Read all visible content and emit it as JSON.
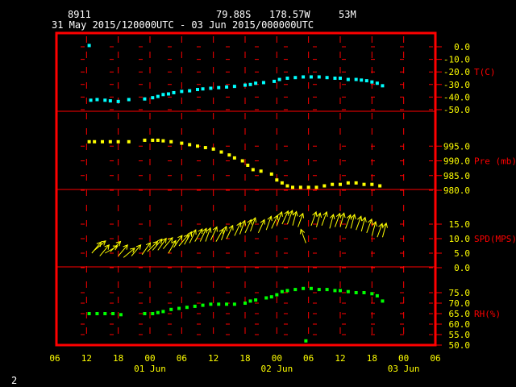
{
  "header": {
    "station": "8911",
    "lat": "79.88S",
    "lon": "178.57W",
    "elev": "53M",
    "range": "31 May 2015/120000UTC - 03 Jun 2015/000000UTC"
  },
  "page_number": "2",
  "colors": {
    "frame": "#ff0000",
    "grid": "#ff0000",
    "temp": "#00ffff",
    "pres": "#ffff00",
    "wind": "#ffff00",
    "rh": "#00ff00",
    "axis_text": "#ffff00",
    "label_text": "#ff0000"
  },
  "chart_data": {
    "type": "scatter",
    "x_unit": "hours since 31 May 2015 06UTC",
    "x_ticks": [
      {
        "h": 0,
        "label": "06"
      },
      {
        "h": 6,
        "label": "12"
      },
      {
        "h": 12,
        "label": "18"
      },
      {
        "h": 18,
        "label": "00"
      },
      {
        "h": 24,
        "label": "06"
      },
      {
        "h": 30,
        "label": "12"
      },
      {
        "h": 36,
        "label": "18"
      },
      {
        "h": 42,
        "label": "00"
      },
      {
        "h": 48,
        "label": "06"
      },
      {
        "h": 54,
        "label": "12"
      },
      {
        "h": 60,
        "label": "18"
      },
      {
        "h": 66,
        "label": "00"
      },
      {
        "h": 72,
        "label": "06"
      }
    ],
    "day_labels": [
      {
        "h": 18,
        "label": "01 Jun"
      },
      {
        "h": 42,
        "label": "02 Jun"
      },
      {
        "h": 66,
        "label": "03 Jun"
      }
    ],
    "panels": [
      {
        "id": "temp",
        "label": "T(C)",
        "ylim": [
          -50,
          0
        ],
        "ticks": [
          "0.0",
          "-10.0",
          "-20.0",
          "-30.0",
          "-40.0",
          "-50.0"
        ],
        "points": [
          [
            6.5,
            1.0
          ],
          [
            6.8,
            -42.5
          ],
          [
            8.0,
            -42.0
          ],
          [
            9.5,
            -42.5
          ],
          [
            10.5,
            -43.0
          ],
          [
            12.0,
            -43.5
          ],
          [
            14.0,
            -42.0
          ],
          [
            17.0,
            -41.5
          ],
          [
            18.5,
            -40.5
          ],
          [
            19.5,
            -39.5
          ],
          [
            20.5,
            -38.0
          ],
          [
            21.5,
            -37.5
          ],
          [
            22.5,
            -36.5
          ],
          [
            24.0,
            -35.5
          ],
          [
            25.5,
            -35.0
          ],
          [
            27.0,
            -34.0
          ],
          [
            28.0,
            -33.5
          ],
          [
            29.5,
            -33.0
          ],
          [
            31.0,
            -32.5
          ],
          [
            32.5,
            -32.0
          ],
          [
            34.0,
            -31.5
          ],
          [
            36.0,
            -30.5
          ],
          [
            37.0,
            -30.0
          ],
          [
            38.0,
            -29.0
          ],
          [
            39.5,
            -28.5
          ],
          [
            41.5,
            -27.5
          ],
          [
            42.5,
            -26.0
          ],
          [
            44.0,
            -25.0
          ],
          [
            45.5,
            -24.5
          ],
          [
            47.0,
            -24.0
          ],
          [
            48.5,
            -24.0
          ],
          [
            50.0,
            -24.0
          ],
          [
            51.5,
            -24.5
          ],
          [
            53.0,
            -25.0
          ],
          [
            54.0,
            -25.0
          ],
          [
            55.5,
            -26.0
          ],
          [
            57.0,
            -26.0
          ],
          [
            58.0,
            -26.5
          ],
          [
            59.0,
            -27.0
          ],
          [
            60.0,
            -28.0
          ],
          [
            61.0,
            -29.0
          ],
          [
            62.0,
            -31.0
          ]
        ]
      },
      {
        "id": "pres",
        "label": "Pre (mb)",
        "ylim": [
          980,
          1000
        ],
        "ticks": [
          "995.0",
          "990.0",
          "985.0",
          "980.0"
        ],
        "points": [
          [
            6.5,
            996.5
          ],
          [
            7.5,
            996.5
          ],
          [
            9.0,
            996.5
          ],
          [
            10.5,
            996.5
          ],
          [
            12.0,
            996.5
          ],
          [
            14.0,
            996.5
          ],
          [
            17.0,
            997.0
          ],
          [
            18.5,
            997.0
          ],
          [
            19.5,
            997.0
          ],
          [
            20.5,
            996.8
          ],
          [
            22.0,
            996.5
          ],
          [
            24.0,
            996.0
          ],
          [
            25.5,
            995.5
          ],
          [
            27.0,
            995.0
          ],
          [
            28.5,
            994.5
          ],
          [
            30.0,
            994.0
          ],
          [
            31.5,
            993.0
          ],
          [
            33.0,
            992.0
          ],
          [
            34.0,
            991.0
          ],
          [
            35.5,
            990.0
          ],
          [
            36.5,
            988.5
          ],
          [
            37.5,
            987.0
          ],
          [
            39.0,
            986.5
          ],
          [
            41.0,
            985.5
          ],
          [
            42.0,
            983.5
          ],
          [
            43.0,
            982.5
          ],
          [
            44.0,
            981.5
          ],
          [
            45.0,
            981.0
          ],
          [
            46.5,
            981.0
          ],
          [
            48.0,
            981.0
          ],
          [
            49.5,
            981.0
          ],
          [
            51.0,
            981.5
          ],
          [
            52.5,
            982.0
          ],
          [
            54.0,
            982.0
          ],
          [
            55.5,
            982.5
          ],
          [
            57.0,
            982.5
          ],
          [
            58.5,
            982.0
          ],
          [
            60.0,
            982.0
          ],
          [
            61.5,
            981.5
          ]
        ]
      },
      {
        "id": "wind",
        "label": "SPD(MPS)",
        "ylim": [
          0,
          20
        ],
        "ticks": [
          "15.0",
          "10.0",
          "5.0",
          "0.0"
        ],
        "points": [
          [
            7.0,
            5.0,
            40
          ],
          [
            7.5,
            6.0,
            50
          ],
          [
            8.5,
            4.0,
            40
          ],
          [
            9.5,
            5.0,
            60
          ],
          [
            10.5,
            5.5,
            45
          ],
          [
            12.0,
            4.0,
            40
          ],
          [
            13.0,
            3.5,
            50
          ],
          [
            14.5,
            4.0,
            40
          ],
          [
            16.5,
            4.5,
            35
          ],
          [
            17.5,
            5.5,
            45
          ],
          [
            18.5,
            6.0,
            40
          ],
          [
            19.5,
            6.0,
            35
          ],
          [
            20.5,
            6.5,
            40
          ],
          [
            21.5,
            5.0,
            30
          ],
          [
            22.5,
            7.0,
            35
          ],
          [
            23.5,
            7.5,
            40
          ],
          [
            24.5,
            8.0,
            30
          ],
          [
            25.5,
            8.5,
            25
          ],
          [
            26.5,
            9.0,
            30
          ],
          [
            27.5,
            9.0,
            25
          ],
          [
            28.5,
            9.0,
            20
          ],
          [
            29.5,
            9.5,
            25
          ],
          [
            30.5,
            9.0,
            30
          ],
          [
            31.5,
            9.5,
            20
          ],
          [
            32.5,
            10.0,
            25
          ],
          [
            34.0,
            11.0,
            25
          ],
          [
            35.0,
            11.5,
            20
          ],
          [
            36.0,
            12.0,
            25
          ],
          [
            37.0,
            12.5,
            20
          ],
          [
            38.5,
            12.0,
            25
          ],
          [
            40.0,
            13.0,
            20
          ],
          [
            41.0,
            13.5,
            25
          ],
          [
            42.0,
            14.5,
            20
          ],
          [
            43.0,
            15.0,
            25
          ],
          [
            44.0,
            15.0,
            20
          ],
          [
            45.0,
            14.5,
            15
          ],
          [
            46.0,
            14.0,
            20
          ],
          [
            47.5,
            8.5,
            -20
          ],
          [
            48.5,
            14.5,
            20
          ],
          [
            49.5,
            14.0,
            15
          ],
          [
            50.5,
            14.5,
            20
          ],
          [
            52.0,
            13.5,
            15
          ],
          [
            53.0,
            14.0,
            20
          ],
          [
            54.0,
            14.0,
            15
          ],
          [
            55.0,
            13.5,
            20
          ],
          [
            56.0,
            13.5,
            15
          ],
          [
            57.0,
            13.0,
            20
          ],
          [
            58.0,
            12.5,
            15
          ],
          [
            59.0,
            12.0,
            20
          ],
          [
            60.0,
            11.0,
            15
          ],
          [
            61.0,
            10.5,
            20
          ],
          [
            62.0,
            10.5,
            15
          ]
        ]
      },
      {
        "id": "rh",
        "label": "RH(%)",
        "ylim": [
          50,
          80
        ],
        "ticks": [
          "75.0",
          "70.0",
          "65.0",
          "60.0",
          "55.0",
          "50.0"
        ],
        "points": [
          [
            6.5,
            65.0
          ],
          [
            8.0,
            65.0
          ],
          [
            9.5,
            65.0
          ],
          [
            11.0,
            65.0
          ],
          [
            12.5,
            64.5
          ],
          [
            17.0,
            65.0
          ],
          [
            18.5,
            65.0
          ],
          [
            19.5,
            65.5
          ],
          [
            20.5,
            66.0
          ],
          [
            22.0,
            67.0
          ],
          [
            23.5,
            67.5
          ],
          [
            25.0,
            68.0
          ],
          [
            26.5,
            68.5
          ],
          [
            28.0,
            69.0
          ],
          [
            29.5,
            69.5
          ],
          [
            31.0,
            69.5
          ],
          [
            32.5,
            69.5
          ],
          [
            34.0,
            69.5
          ],
          [
            36.0,
            70.0
          ],
          [
            37.0,
            71.0
          ],
          [
            38.0,
            71.5
          ],
          [
            40.0,
            72.5
          ],
          [
            41.0,
            73.0
          ],
          [
            42.0,
            74.0
          ],
          [
            43.0,
            75.5
          ],
          [
            44.0,
            76.0
          ],
          [
            45.5,
            76.5
          ],
          [
            47.0,
            77.0
          ],
          [
            48.5,
            77.0
          ],
          [
            50.0,
            76.5
          ],
          [
            51.5,
            76.5
          ],
          [
            53.0,
            76.0
          ],
          [
            54.0,
            76.0
          ],
          [
            55.5,
            75.5
          ],
          [
            57.0,
            75.0
          ],
          [
            58.5,
            75.0
          ],
          [
            60.0,
            74.5
          ],
          [
            61.0,
            73.5
          ],
          [
            62.0,
            71.0
          ],
          [
            47.5,
            52.0
          ]
        ]
      }
    ]
  }
}
